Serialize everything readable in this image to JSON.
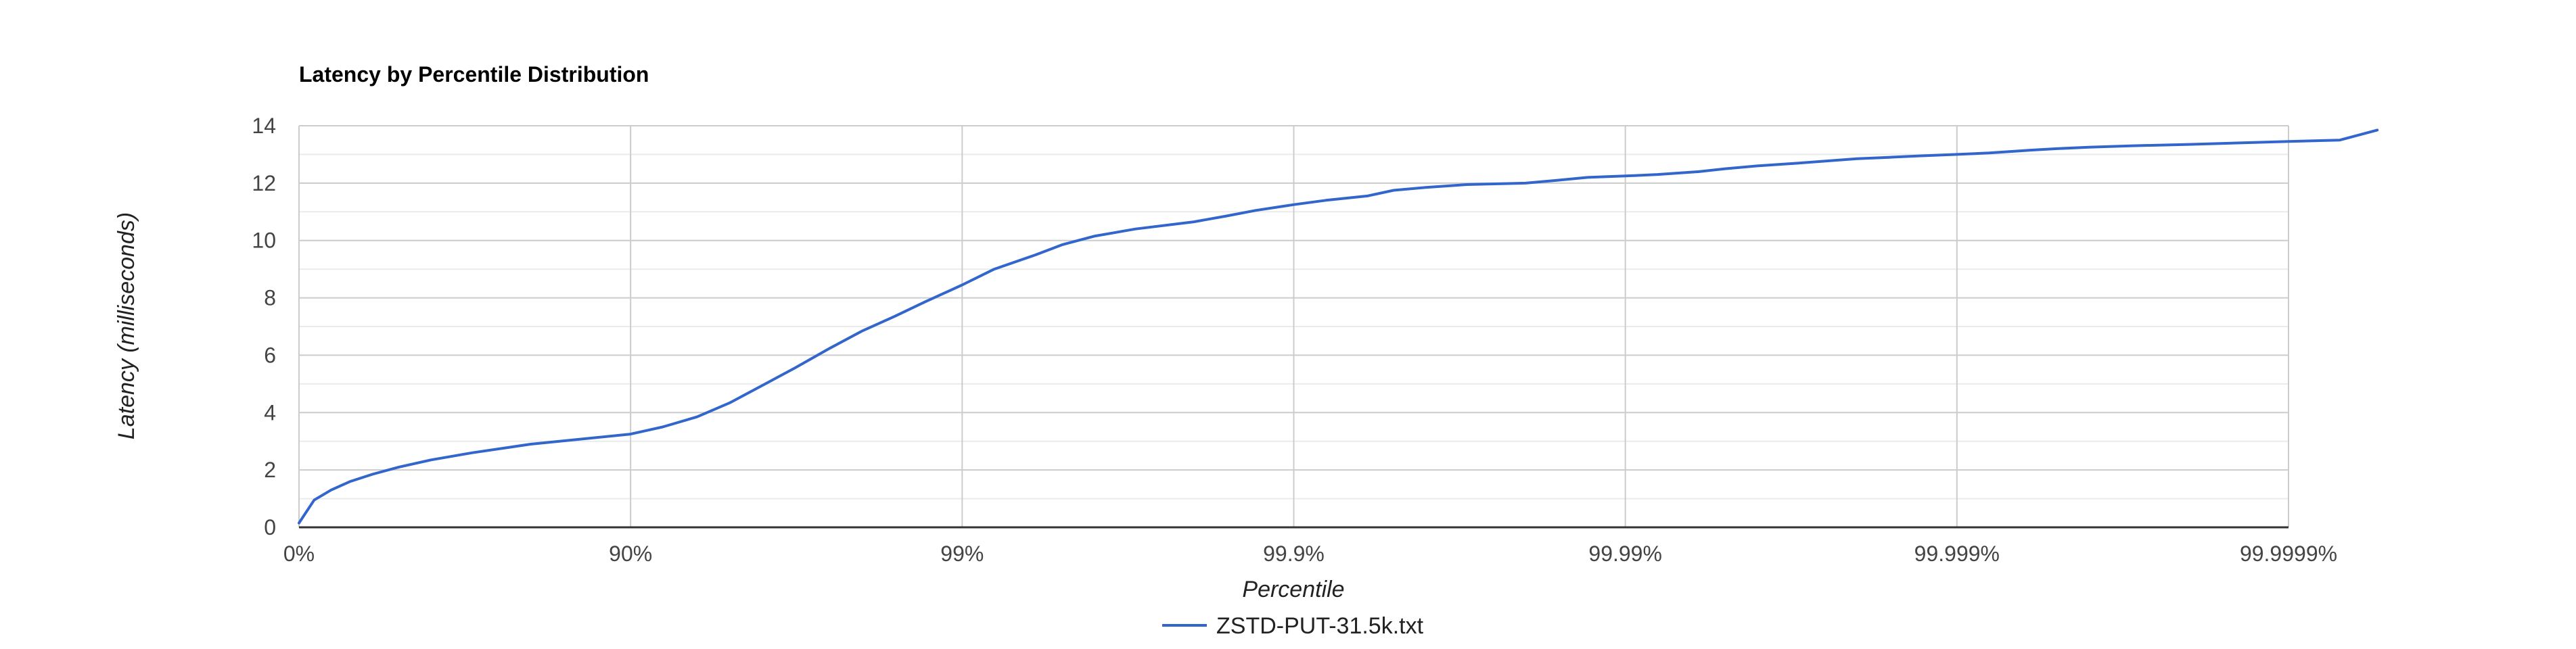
{
  "chart_data": {
    "type": "line",
    "title": "Latency by Percentile Distribution",
    "xlabel": "Percentile",
    "ylabel": "Latency (milliseconds)",
    "x_scale": "log-inverse-percentile",
    "x_ticks": [
      "0%",
      "90%",
      "99%",
      "99.9%",
      "99.99%",
      "99.999%",
      "99.9999%"
    ],
    "y_ticks": [
      "0",
      "2",
      "4",
      "6",
      "8",
      "10",
      "12",
      "14"
    ],
    "ylim": [
      0,
      14
    ],
    "grid": true,
    "legend_position": "bottom",
    "colors": {
      "series": "#3366cc",
      "grid_major": "#cccccc",
      "grid_minor": "#ebebeb",
      "axis": "#333333"
    },
    "series": [
      {
        "name": "ZSTD-PUT-31.5k.txt",
        "color": "#3366cc",
        "x_percentile": [
          0,
          10,
          20,
          30,
          40,
          50,
          60,
          70,
          80,
          90,
          92,
          93.7,
          95,
          96,
          96.8,
          97.5,
          98,
          98.4,
          98.7,
          99,
          99.2,
          99.4,
          99.5,
          99.6,
          99.7,
          99.8,
          99.84,
          99.87,
          99.9,
          99.92,
          99.94,
          99.95,
          99.96,
          99.97,
          99.98,
          99.984,
          99.987,
          99.99,
          99.992,
          99.994,
          99.995,
          99.996,
          99.997,
          99.998,
          99.9984,
          99.9987,
          99.999,
          99.9992,
          99.9994,
          99.9995,
          99.9996,
          99.9997,
          99.9998,
          99.9999,
          99.99993,
          99.999946
        ],
        "y": [
          0.15,
          0.95,
          1.3,
          1.6,
          1.85,
          2.1,
          2.35,
          2.6,
          2.9,
          3.25,
          3.5,
          3.85,
          4.35,
          4.95,
          5.55,
          6.25,
          6.85,
          7.35,
          7.85,
          8.45,
          9.0,
          9.5,
          9.85,
          10.15,
          10.4,
          10.65,
          10.85,
          11.05,
          11.25,
          11.4,
          11.55,
          11.75,
          11.85,
          11.95,
          12.0,
          12.1,
          12.2,
          12.25,
          12.3,
          12.4,
          12.5,
          12.6,
          12.7,
          12.85,
          12.9,
          12.95,
          13.0,
          13.05,
          13.15,
          13.2,
          13.25,
          13.3,
          13.35,
          13.45,
          13.5,
          13.85
        ]
      }
    ]
  }
}
